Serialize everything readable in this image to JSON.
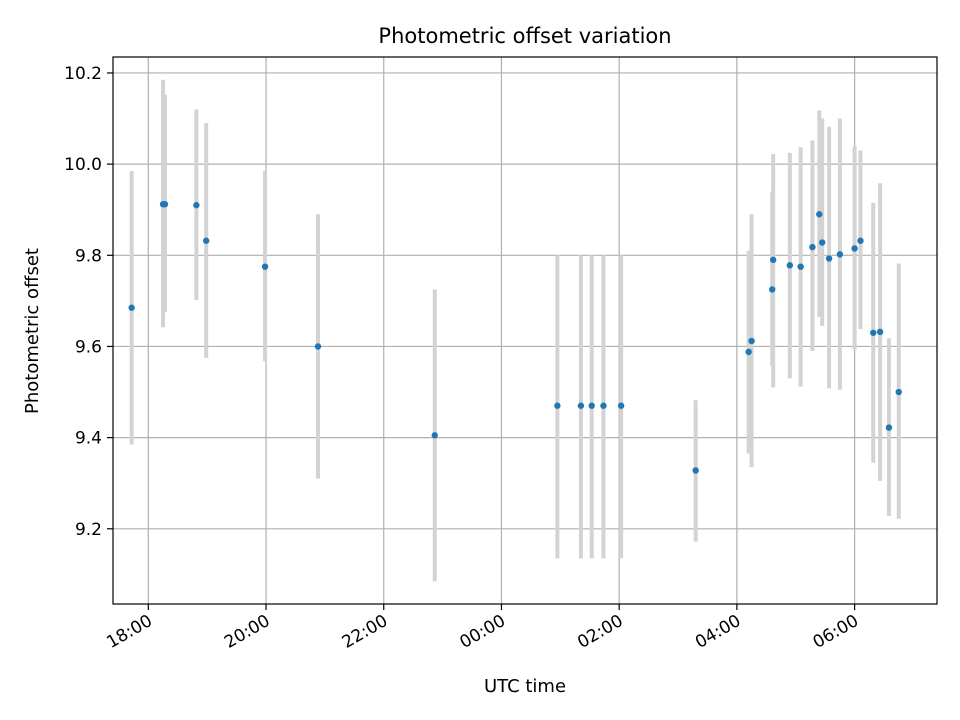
{
  "chart_data": {
    "type": "scatter",
    "title": "Photometric offset variation",
    "xlabel": "UTC time",
    "ylabel": "Photometric offset",
    "x_axis": "time",
    "xlim": [
      "17:24",
      "07:24"
    ],
    "ylim": [
      9.035,
      10.235
    ],
    "xticks": [
      "18:00",
      "20:00",
      "22:00",
      "00:00",
      "02:00",
      "04:00",
      "06:00"
    ],
    "yticks": [
      "9.2",
      "9.4",
      "9.6",
      "9.8",
      "10.0",
      "10.2"
    ],
    "grid": true,
    "colors": {
      "point": "#1f77b4",
      "errorbar": "#d3d3d3",
      "grid": "#b0b0b0",
      "axis": "#000000"
    },
    "series": [
      {
        "points": [
          {
            "x": "17:43",
            "y": 9.685,
            "ylow": 9.385,
            "yhigh": 9.985
          },
          {
            "x": "18:15",
            "y": 9.912,
            "ylow": 9.642,
            "yhigh": 10.185
          },
          {
            "x": "18:17",
            "y": 9.912,
            "ylow": 9.675,
            "yhigh": 10.152
          },
          {
            "x": "18:49",
            "y": 9.91,
            "ylow": 9.702,
            "yhigh": 10.12
          },
          {
            "x": "18:59",
            "y": 9.832,
            "ylow": 9.575,
            "yhigh": 10.09
          },
          {
            "x": "19:59",
            "y": 9.775,
            "ylow": 9.568,
            "yhigh": 9.985
          },
          {
            "x": "20:53",
            "y": 9.6,
            "ylow": 9.31,
            "yhigh": 9.89
          },
          {
            "x": "22:52",
            "y": 9.405,
            "ylow": 9.085,
            "yhigh": 9.725
          },
          {
            "x": "00:57",
            "y": 9.47,
            "ylow": 9.135,
            "yhigh": 9.8
          },
          {
            "x": "01:21",
            "y": 9.47,
            "ylow": 9.135,
            "yhigh": 9.8
          },
          {
            "x": "01:32",
            "y": 9.47,
            "ylow": 9.135,
            "yhigh": 9.8
          },
          {
            "x": "01:44",
            "y": 9.47,
            "ylow": 9.135,
            "yhigh": 9.8
          },
          {
            "x": "02:02",
            "y": 9.47,
            "ylow": 9.135,
            "yhigh": 9.8
          },
          {
            "x": "03:18",
            "y": 9.328,
            "ylow": 9.172,
            "yhigh": 9.482
          },
          {
            "x": "04:12",
            "y": 9.588,
            "ylow": 9.365,
            "yhigh": 9.81
          },
          {
            "x": "04:15",
            "y": 9.612,
            "ylow": 9.335,
            "yhigh": 9.89
          },
          {
            "x": "04:36",
            "y": 9.725,
            "ylow": 9.558,
            "yhigh": 9.94
          },
          {
            "x": "04:37",
            "y": 9.79,
            "ylow": 9.51,
            "yhigh": 10.022
          },
          {
            "x": "04:54",
            "y": 9.778,
            "ylow": 9.53,
            "yhigh": 10.025
          },
          {
            "x": "05:05",
            "y": 9.775,
            "ylow": 9.512,
            "yhigh": 10.037
          },
          {
            "x": "05:17",
            "y": 9.818,
            "ylow": 9.59,
            "yhigh": 10.052
          },
          {
            "x": "05:24",
            "y": 9.89,
            "ylow": 9.665,
            "yhigh": 10.118
          },
          {
            "x": "05:27",
            "y": 9.828,
            "ylow": 9.645,
            "yhigh": 10.1
          },
          {
            "x": "05:34",
            "y": 9.793,
            "ylow": 9.508,
            "yhigh": 10.082
          },
          {
            "x": "05:45",
            "y": 9.802,
            "ylow": 9.505,
            "yhigh": 10.1
          },
          {
            "x": "06:00",
            "y": 9.815,
            "ylow": 9.593,
            "yhigh": 10.04
          },
          {
            "x": "06:06",
            "y": 9.832,
            "ylow": 9.638,
            "yhigh": 10.03
          },
          {
            "x": "06:19",
            "y": 9.63,
            "ylow": 9.345,
            "yhigh": 9.915
          },
          {
            "x": "06:26",
            "y": 9.632,
            "ylow": 9.305,
            "yhigh": 9.958
          },
          {
            "x": "06:35",
            "y": 9.422,
            "ylow": 9.228,
            "yhigh": 9.618
          },
          {
            "x": "06:45",
            "y": 9.5,
            "ylow": 9.222,
            "yhigh": 9.782
          }
        ]
      }
    ]
  }
}
